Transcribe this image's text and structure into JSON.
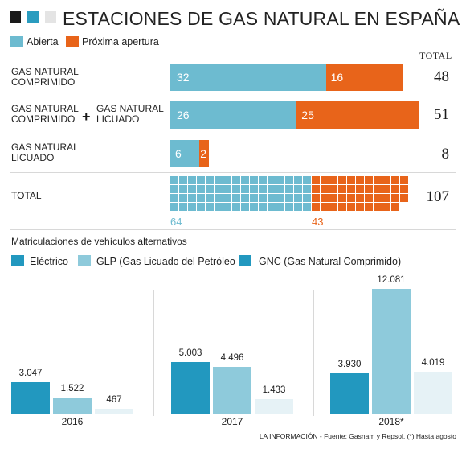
{
  "header": {
    "title": "ESTACIONES DE GAS NATURAL EN ESPAÑA",
    "logo_colors": [
      "#1a1a1a",
      "#2a9cbf",
      "#e4e4e4"
    ]
  },
  "stations": {
    "legend": [
      {
        "label": "Abierta",
        "color": "#6dbbd0"
      },
      {
        "label": "Próxima apertura",
        "color": "#e8641a"
      }
    ],
    "total_header": "TOTAL",
    "rows": [
      {
        "label_line1": "GAS NATURAL",
        "label_line2": "COMPRIMIDO",
        "open": 32,
        "upcoming": 16,
        "total": "48"
      },
      {
        "label_line1": "GAS NATURAL",
        "label_line2": "COMPRIMIDO",
        "plus": "+",
        "label2_line1": "GAS NATURAL",
        "label2_line2": "LICUADO",
        "open": 26,
        "upcoming": 25,
        "total": "51"
      },
      {
        "label_line1": "GAS NATURAL",
        "label_line2": "LICUADO",
        "open": 6,
        "upcoming": 2,
        "total": "8"
      }
    ],
    "total_row": {
      "label": "TOTAL",
      "open": "64",
      "upcoming": "43",
      "total": "107"
    }
  },
  "vehicles": {
    "title": "Matriculaciones de vehículos alternativos",
    "legend": [
      {
        "label": "Eléctrico",
        "color": "#2298bf"
      },
      {
        "label": "GLP (Gas Licuado del Petróleo",
        "color": "#8ecadb"
      },
      {
        "label": "GNC (Gas Natural Comprimido)",
        "color": "#2298bf"
      }
    ],
    "bar_colors": [
      "#2298bf",
      "#8ecadb",
      "#e6f2f6"
    ]
  },
  "chart_data": [
    {
      "type": "bar",
      "orientation": "horizontal",
      "stacked": true,
      "title": "ESTACIONES DE GAS NATURAL EN ESPAÑA",
      "categories": [
        "GAS NATURAL COMPRIMIDO",
        "GAS NATURAL COMPRIMIDO + GAS NATURAL LICUADO",
        "GAS NATURAL LICUADO"
      ],
      "series": [
        {
          "name": "Abierta",
          "values": [
            32,
            26,
            6
          ]
        },
        {
          "name": "Próxima apertura",
          "values": [
            16,
            25,
            2
          ]
        }
      ],
      "totals": [
        48,
        51,
        8
      ],
      "grand_total": {
        "Abierta": 64,
        "Próxima apertura": 43,
        "TOTAL": 107
      }
    },
    {
      "type": "bar",
      "title": "Matriculaciones de vehículos alternativos",
      "categories": [
        "2016",
        "2017",
        "2018*"
      ],
      "series": [
        {
          "name": "Eléctrico",
          "values": [
            3047,
            5003,
            3930
          ],
          "labels": [
            "3.047",
            "5.003",
            "3.930"
          ]
        },
        {
          "name": "GLP (Gas Licuado del Petróleo",
          "values": [
            1522,
            4496,
            12081
          ],
          "labels": [
            "1.522",
            "4.496",
            "12.081"
          ]
        },
        {
          "name": "GNC (Gas Natural Comprimido)",
          "values": [
            467,
            1433,
            4019
          ],
          "labels": [
            "467",
            "1.433",
            "4.019"
          ]
        }
      ]
    }
  ],
  "footer": {
    "source": "LA INFORMACIÓN - Fuente: Gasnam y Repsol. (*) Hasta agosto"
  }
}
